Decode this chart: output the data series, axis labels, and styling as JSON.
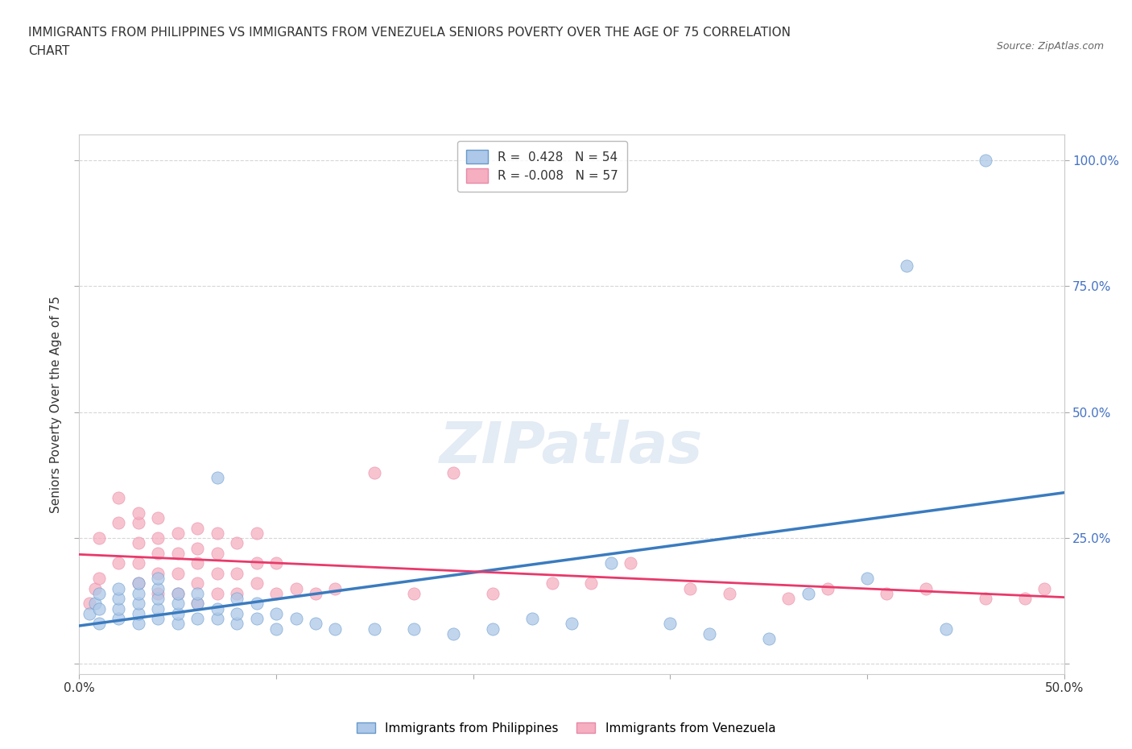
{
  "title_line1": "IMMIGRANTS FROM PHILIPPINES VS IMMIGRANTS FROM VENEZUELA SENIORS POVERTY OVER THE AGE OF 75 CORRELATION",
  "title_line2": "CHART",
  "source": "Source: ZipAtlas.com",
  "ylabel": "Seniors Poverty Over the Age of 75",
  "watermark": "ZIPatlas",
  "xlim": [
    0.0,
    0.5
  ],
  "ylim": [
    -0.02,
    1.05
  ],
  "xticks": [
    0.0,
    0.1,
    0.2,
    0.3,
    0.4,
    0.5
  ],
  "yticks": [
    0.0,
    0.25,
    0.5,
    0.75,
    1.0
  ],
  "xtick_labels": [
    "0.0%",
    "",
    "",
    "",
    "",
    "50.0%"
  ],
  "ytick_right_labels": [
    "",
    "25.0%",
    "50.0%",
    "75.0%",
    "100.0%"
  ],
  "philippines_color": "#adc8e8",
  "venezuela_color": "#f5afc0",
  "philippines_edge_color": "#6699cc",
  "venezuela_edge_color": "#e888a8",
  "philippines_line_color": "#3a7bbf",
  "venezuela_line_color": "#e8396a",
  "R_philippines": 0.428,
  "N_philippines": 54,
  "R_venezuela": -0.008,
  "N_venezuela": 57,
  "legend_label_philippines": "Immigrants from Philippines",
  "legend_label_venezuela": "Immigrants from Venezuela",
  "background_color": "#ffffff",
  "grid_color": "#cccccc",
  "title_color": "#333333",
  "axis_tick_color": "#4472c4",
  "philippines_scatter_x": [
    0.005,
    0.008,
    0.01,
    0.01,
    0.01,
    0.02,
    0.02,
    0.02,
    0.02,
    0.03,
    0.03,
    0.03,
    0.03,
    0.03,
    0.04,
    0.04,
    0.04,
    0.04,
    0.04,
    0.05,
    0.05,
    0.05,
    0.05,
    0.06,
    0.06,
    0.06,
    0.07,
    0.07,
    0.07,
    0.08,
    0.08,
    0.08,
    0.09,
    0.09,
    0.1,
    0.1,
    0.11,
    0.12,
    0.13,
    0.15,
    0.17,
    0.19,
    0.21,
    0.23,
    0.25,
    0.27,
    0.3,
    0.32,
    0.35,
    0.37,
    0.4,
    0.42,
    0.44,
    0.46
  ],
  "philippines_scatter_y": [
    0.1,
    0.12,
    0.08,
    0.11,
    0.14,
    0.09,
    0.11,
    0.13,
    0.15,
    0.08,
    0.1,
    0.12,
    0.14,
    0.16,
    0.09,
    0.11,
    0.13,
    0.15,
    0.17,
    0.08,
    0.1,
    0.12,
    0.14,
    0.09,
    0.12,
    0.14,
    0.09,
    0.11,
    0.37,
    0.08,
    0.1,
    0.13,
    0.09,
    0.12,
    0.07,
    0.1,
    0.09,
    0.08,
    0.07,
    0.07,
    0.07,
    0.06,
    0.07,
    0.09,
    0.08,
    0.2,
    0.08,
    0.06,
    0.05,
    0.14,
    0.17,
    0.79,
    0.07,
    1.0
  ],
  "venezuela_scatter_x": [
    0.005,
    0.008,
    0.01,
    0.01,
    0.02,
    0.02,
    0.02,
    0.03,
    0.03,
    0.03,
    0.03,
    0.03,
    0.04,
    0.04,
    0.04,
    0.04,
    0.04,
    0.05,
    0.05,
    0.05,
    0.05,
    0.06,
    0.06,
    0.06,
    0.06,
    0.06,
    0.07,
    0.07,
    0.07,
    0.07,
    0.08,
    0.08,
    0.08,
    0.09,
    0.09,
    0.09,
    0.1,
    0.1,
    0.11,
    0.12,
    0.13,
    0.15,
    0.17,
    0.19,
    0.21,
    0.24,
    0.26,
    0.28,
    0.31,
    0.33,
    0.36,
    0.38,
    0.41,
    0.43,
    0.46,
    0.48,
    0.49
  ],
  "venezuela_scatter_y": [
    0.12,
    0.15,
    0.17,
    0.25,
    0.2,
    0.28,
    0.33,
    0.16,
    0.2,
    0.24,
    0.28,
    0.3,
    0.14,
    0.18,
    0.22,
    0.25,
    0.29,
    0.14,
    0.18,
    0.22,
    0.26,
    0.12,
    0.16,
    0.2,
    0.23,
    0.27,
    0.14,
    0.18,
    0.22,
    0.26,
    0.14,
    0.18,
    0.24,
    0.16,
    0.2,
    0.26,
    0.14,
    0.2,
    0.15,
    0.14,
    0.15,
    0.38,
    0.14,
    0.38,
    0.14,
    0.16,
    0.16,
    0.2,
    0.15,
    0.14,
    0.13,
    0.15,
    0.14,
    0.15,
    0.13,
    0.13,
    0.15
  ],
  "title_fontsize": 11,
  "axis_label_fontsize": 11,
  "tick_fontsize": 11,
  "legend_fontsize": 11,
  "source_fontsize": 9
}
